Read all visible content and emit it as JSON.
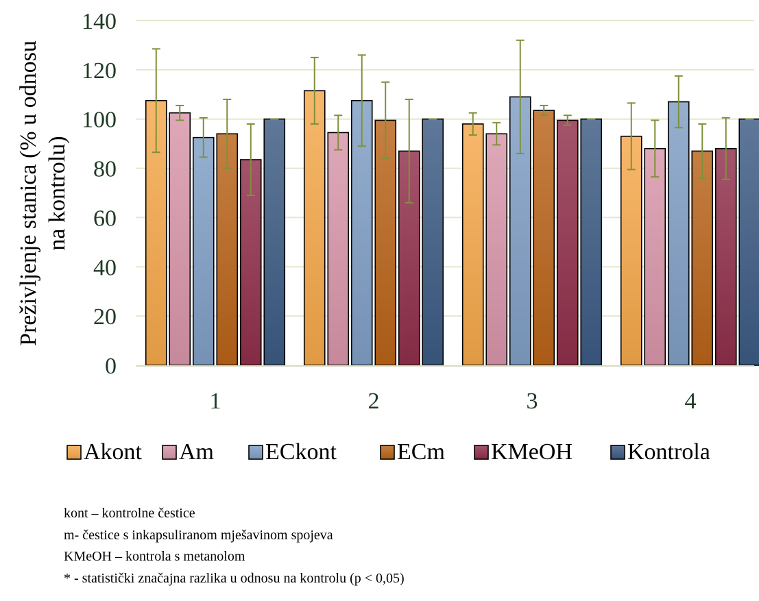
{
  "chart_data": {
    "type": "bar",
    "title": "",
    "xlabel": "",
    "ylabel": "Preživljenje  stanica  (% u odnosu na kontrolu)",
    "ylabel_lines": [
      "Preživljenje  stanica  (% u odnosu",
      "na kontrolu)"
    ],
    "ylim": [
      0,
      140
    ],
    "yticks": [
      0,
      20,
      40,
      60,
      80,
      100,
      120,
      140
    ],
    "ytick_labels": [
      "0",
      "20",
      "40",
      "60",
      "80",
      "100",
      "120",
      "140"
    ],
    "grid": true,
    "legend_position": "bottom",
    "categories": [
      "1",
      "2",
      "3",
      "4"
    ],
    "series": [
      {
        "name": "Akont",
        "color": "#f5a74a",
        "values": [
          107.5,
          111.5,
          98,
          93
        ],
        "err": [
          21,
          13.5,
          4.5,
          13.5
        ]
      },
      {
        "name": "Am",
        "color": "#d795a8",
        "values": [
          102.5,
          94.5,
          94,
          88
        ],
        "err": [
          3,
          7,
          4.5,
          11.5
        ]
      },
      {
        "name": "ECkont",
        "color": "#7f9ec4",
        "values": [
          92.5,
          107.5,
          109,
          107
        ],
        "err": [
          8,
          18.5,
          23,
          10.5
        ]
      },
      {
        "name": "ECm",
        "color": "#b86318",
        "values": [
          94,
          99.5,
          103.5,
          87
        ],
        "err": [
          14,
          15.5,
          2,
          11
        ]
      },
      {
        "name": "KMeOH",
        "color": "#8f2f4a",
        "values": [
          83.5,
          87,
          99.5,
          88
        ],
        "err": [
          14.5,
          21,
          2,
          12.5
        ]
      },
      {
        "name": "Kontrola",
        "color": "#3c5a82",
        "values": [
          100,
          100,
          100,
          100
        ],
        "err": [
          0,
          0,
          0,
          0
        ]
      }
    ],
    "error_bar_color": "#7f913a"
  },
  "notes": [
    "kont – kontrolne čestice",
    "m- čestice s inkapsuliranom mješavinom spojeva",
    "KMeOH – kontrola s metanolom",
    "* - statistički značajna razlika u odnosu na kontrolu (p < 0,05)"
  ]
}
